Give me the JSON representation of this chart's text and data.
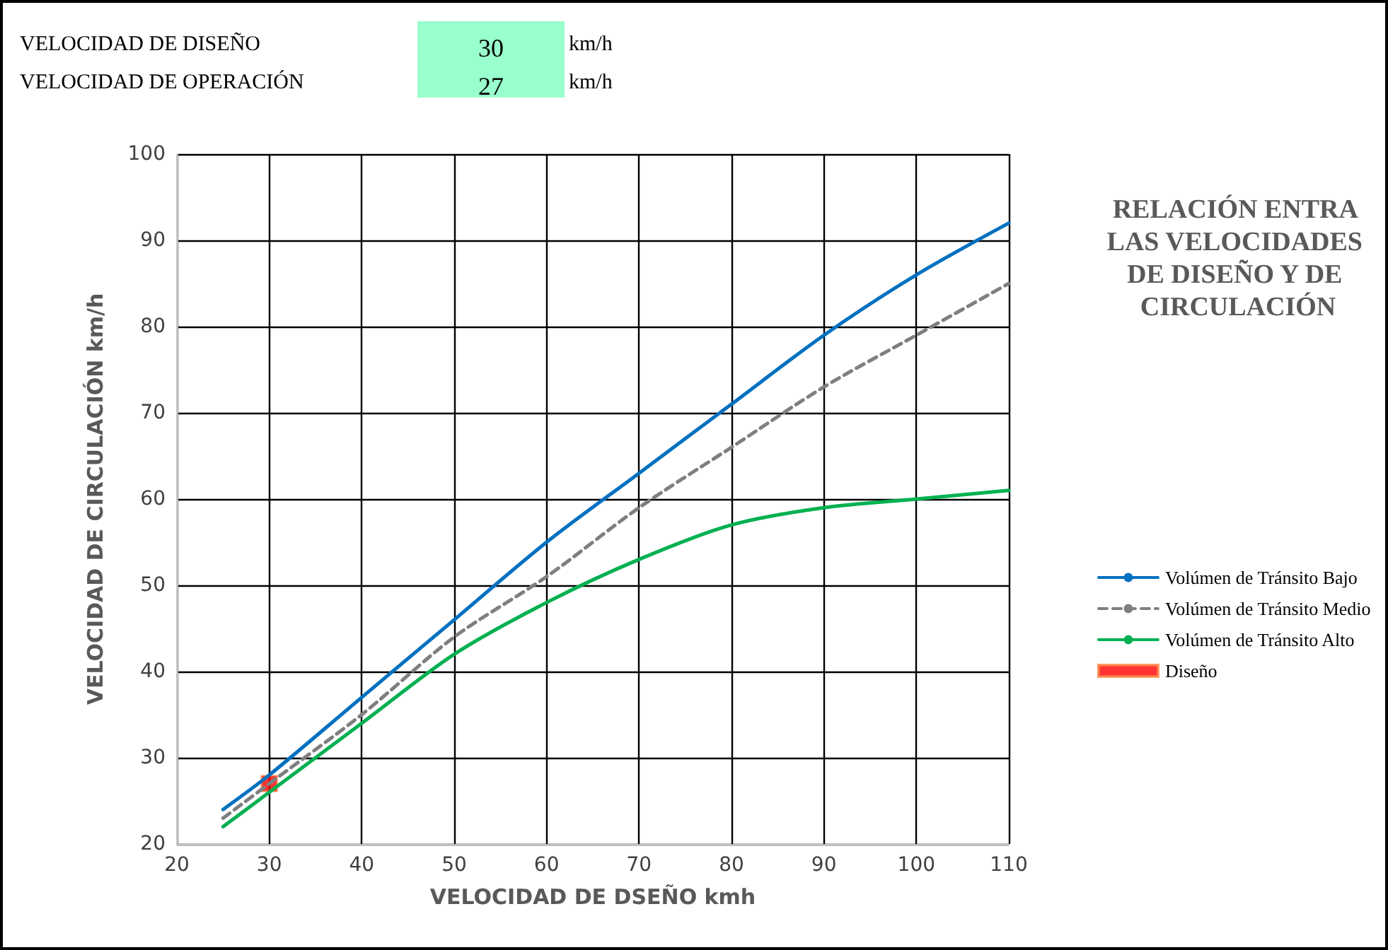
{
  "chart_data": {
    "type": "line",
    "title": "RELACIÓN ENTRA LAS VELOCIDADES DE DISEÑO Y DE CIRCULACIÓN",
    "xlabel": "VELOCIDAD DE DSEÑO kmh",
    "ylabel": "VELOCIDAD DE CIRCULACIÓN km/h",
    "annotations": [
      "VELOCIDAD DE DISEÑO",
      "30",
      "km/h",
      "VELOCIDAD DE OPERACIÓN",
      "27",
      "km/h"
    ],
    "x": [
      25,
      30,
      40,
      50,
      60,
      70,
      80,
      90,
      100,
      110
    ],
    "series": [
      {
        "name": "Volúmen de Tránsito Bajo",
        "color": "#0070c0",
        "values": [
          24,
          28,
          37,
          46,
          55,
          63,
          71,
          79,
          86,
          92
        ]
      },
      {
        "name": "Volúmen de Tránsito Medio",
        "color": "#7f7f7f",
        "line_style": "dashed",
        "values": [
          23,
          27,
          35,
          44,
          51,
          59,
          66,
          73,
          79,
          85
        ]
      },
      {
        "name": "Volúmen de Tránsito Alto",
        "color": "#00b050",
        "values": [
          22,
          26,
          34,
          42,
          48,
          53,
          57,
          59,
          60,
          61
        ]
      },
      {
        "name": "Diseño",
        "type": "scatter",
        "marker": "square",
        "color": "#ff0000",
        "x": [
          30
        ],
        "values": [
          27
        ]
      }
    ],
    "xlim": [
      20,
      110
    ],
    "xticks": [
      20,
      30,
      40,
      50,
      60,
      70,
      80,
      90,
      100,
      110
    ],
    "ylim": [
      20,
      100
    ],
    "yticks": [
      20,
      30,
      40,
      50,
      60,
      70,
      80,
      90,
      100
    ],
    "grid": true,
    "legend": "right",
    "marker": "none",
    "line_style": "solid"
  }
}
